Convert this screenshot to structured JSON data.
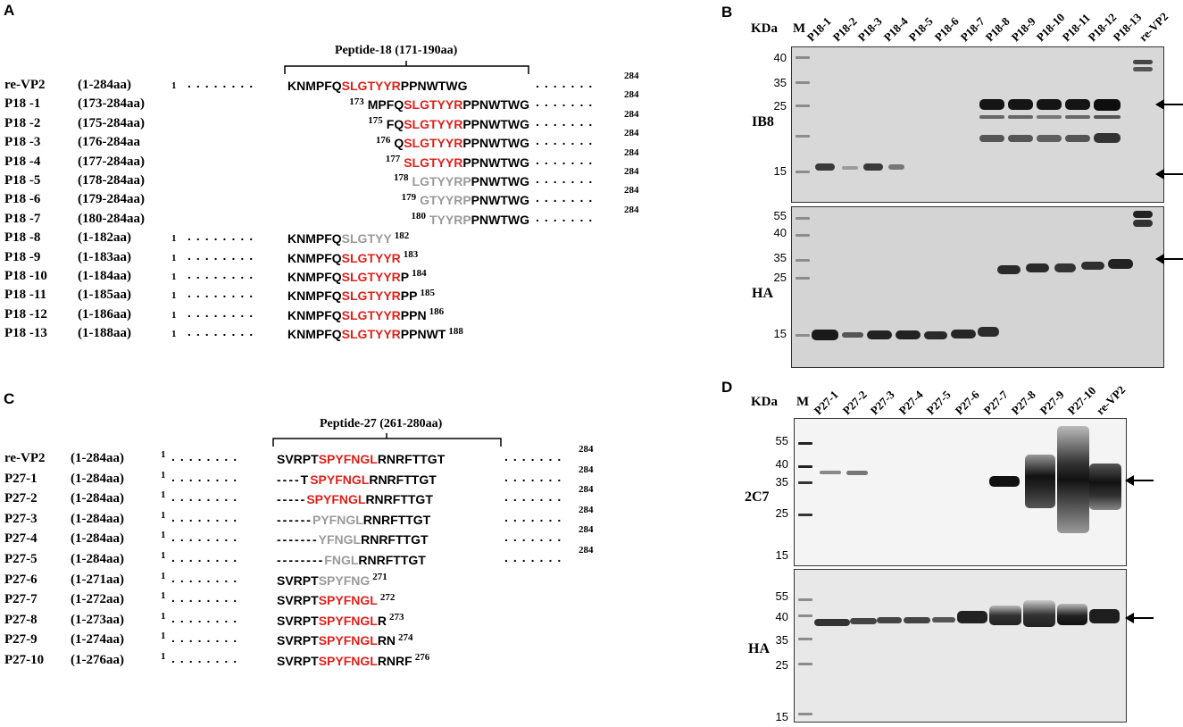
{
  "panels": {
    "A": {
      "letter": "A",
      "peptide_title": "Peptide-18 (171-190aa)",
      "rows": [
        {
          "name": "re-VP2",
          "range": "(1-284aa)",
          "start": "1",
          "parts": [
            {
              "t": "KNMPFQ",
              "c": "b"
            },
            {
              "t": "SLGTYYR",
              "c": "r"
            },
            {
              "t": "PPNWTWG",
              "c": "b"
            }
          ],
          "end": "284",
          "dots_left": true,
          "dots_right": true
        },
        {
          "name": "P18 -1",
          "range": "(173-284aa)",
          "start": "173",
          "parts": [
            {
              "t": "MPFQ",
              "c": "b"
            },
            {
              "t": "SLGTYYR",
              "c": "r"
            },
            {
              "t": "PPNWTWG",
              "c": "b"
            }
          ],
          "end": "284",
          "dots_left": false,
          "dots_right": true
        },
        {
          "name": "P18 -2",
          "range": "(175-284aa)",
          "start": "175",
          "parts": [
            {
              "t": "FQ",
              "c": "b"
            },
            {
              "t": "SLGTYYR",
              "c": "r"
            },
            {
              "t": "PPNWTWG",
              "c": "b"
            }
          ],
          "end": "284",
          "dots_left": false,
          "dots_right": true
        },
        {
          "name": "P18 -3",
          "range": "(176-284aa",
          "start": "176",
          "parts": [
            {
              "t": "Q",
              "c": "b"
            },
            {
              "t": "SLGTYYR",
              "c": "r"
            },
            {
              "t": "PPNWTWG",
              "c": "b"
            }
          ],
          "end": "284",
          "dots_left": false,
          "dots_right": true
        },
        {
          "name": "P18 -4",
          "range": "(177-284aa)",
          "start": "177",
          "parts": [
            {
              "t": "SLGTYYR",
              "c": "r"
            },
            {
              "t": "PPNWTWG",
              "c": "b"
            }
          ],
          "end": "284",
          "dots_left": false,
          "dots_right": true
        },
        {
          "name": "P18 -5",
          "range": "(178-284aa)",
          "start": "178",
          "parts": [
            {
              "t": "LGTYYRP",
              "c": "g"
            },
            {
              "t": "PNWTWG",
              "c": "b"
            }
          ],
          "end": "284",
          "dots_left": false,
          "dots_right": true
        },
        {
          "name": "P18 -6",
          "range": "(179-284aa)",
          "start": "179",
          "parts": [
            {
              "t": "GTYYRP",
              "c": "g"
            },
            {
              "t": "PNWTWG",
              "c": "b"
            }
          ],
          "end": "284",
          "dots_left": false,
          "dots_right": true
        },
        {
          "name": "P18 -7",
          "range": "(180-284aa)",
          "start": "180",
          "parts": [
            {
              "t": "TYYRP",
              "c": "g"
            },
            {
              "t": "PNWTWG",
              "c": "b"
            }
          ],
          "end": "284",
          "dots_left": false,
          "dots_right": true
        },
        {
          "name": "P18 -8",
          "range": "(1-182aa)",
          "start": "1",
          "parts": [
            {
              "t": "KNMPFQ",
              "c": "b"
            },
            {
              "t": "SLGTYY",
              "c": "g"
            }
          ],
          "end": "182",
          "dots_left": true,
          "dots_right": false
        },
        {
          "name": "P18 -9",
          "range": "(1-183aa)",
          "start": "1",
          "parts": [
            {
              "t": "KNMPFQ",
              "c": "b"
            },
            {
              "t": "SLGTYYR",
              "c": "r"
            }
          ],
          "end": "183",
          "dots_left": true,
          "dots_right": false
        },
        {
          "name": "P18 -10",
          "range": "(1-184aa)",
          "start": "1",
          "parts": [
            {
              "t": "KNMPFQ",
              "c": "b"
            },
            {
              "t": "SLGTYYR",
              "c": "r"
            },
            {
              "t": "P",
              "c": "b"
            }
          ],
          "end": "184",
          "dots_left": true,
          "dots_right": false
        },
        {
          "name": "P18 -11",
          "range": "(1-185aa)",
          "start": "1",
          "parts": [
            {
              "t": "KNMPFQ",
              "c": "b"
            },
            {
              "t": "SLGTYYR",
              "c": "r"
            },
            {
              "t": "PP",
              "c": "b"
            }
          ],
          "end": "185",
          "dots_left": true,
          "dots_right": false
        },
        {
          "name": "P18 -12",
          "range": "(1-186aa)",
          "start": "1",
          "parts": [
            {
              "t": "KNMPFQ",
              "c": "b"
            },
            {
              "t": "SLGTYYR",
              "c": "r"
            },
            {
              "t": "PPN",
              "c": "b"
            }
          ],
          "end": "186",
          "dots_left": true,
          "dots_right": false
        },
        {
          "name": "P18 -13",
          "range": "(1-188aa)",
          "start": "1",
          "parts": [
            {
              "t": "KNMPFQ",
              "c": "b"
            },
            {
              "t": "SLGTYYR",
              "c": "r"
            },
            {
              "t": "PPNWT",
              "c": "b"
            }
          ],
          "end": "188",
          "dots_left": true,
          "dots_right": false
        }
      ]
    },
    "C": {
      "letter": "C",
      "peptide_title": "Peptide-27 (261-280aa)",
      "rows": [
        {
          "name": "re-VP2",
          "range": "(1-284aa)",
          "start": "1",
          "parts": [
            {
              "t": "SVRPT",
              "c": "b"
            },
            {
              "t": "SPYFNGL",
              "c": "r"
            },
            {
              "t": "RNRFTTGT",
              "c": "b"
            }
          ],
          "end": "284",
          "dots_right": true
        },
        {
          "name": "P27-1",
          "range": "(1-284aa)",
          "start": "1",
          "parts": [
            {
              "t": "----T",
              "c": "b"
            },
            {
              "t": "SPYFNGL",
              "c": "r"
            },
            {
              "t": "RNRFTTGT",
              "c": "b"
            }
          ],
          "end": "284",
          "dots_right": true
        },
        {
          "name": "P27-2",
          "range": "(1-284aa)",
          "start": "1",
          "parts": [
            {
              "t": "-----",
              "c": "b"
            },
            {
              "t": "SPYFNGL",
              "c": "r"
            },
            {
              "t": "RNRFTTGT",
              "c": "b"
            }
          ],
          "end": "284",
          "dots_right": true
        },
        {
          "name": "P27-3",
          "range": "(1-284aa)",
          "start": "1",
          "parts": [
            {
              "t": "------",
              "c": "b"
            },
            {
              "t": "PYFNGL",
              "c": "g"
            },
            {
              "t": "RNRFTTGT",
              "c": "b"
            }
          ],
          "end": "284",
          "dots_right": true
        },
        {
          "name": "P27-4",
          "range": "(1-284aa)",
          "start": "1",
          "parts": [
            {
              "t": "-------",
              "c": "b"
            },
            {
              "t": "YFNGL",
              "c": "g"
            },
            {
              "t": "RNRFTTGT",
              "c": "b"
            }
          ],
          "end": "284",
          "dots_right": true
        },
        {
          "name": "P27-5",
          "range": "(1-284aa)",
          "start": "1",
          "parts": [
            {
              "t": "--------",
              "c": "b"
            },
            {
              "t": "FNGL",
              "c": "g"
            },
            {
              "t": "RNRFTTGT",
              "c": "b"
            }
          ],
          "end": "284",
          "dots_right": true
        },
        {
          "name": "P27-6",
          "range": "(1-271aa)",
          "start": "1",
          "parts": [
            {
              "t": "SVRPT",
              "c": "b"
            },
            {
              "t": "SPYFNG",
              "c": "g"
            }
          ],
          "end": "271",
          "dots_right": false
        },
        {
          "name": "P27-7",
          "range": "(1-272aa)",
          "start": "1",
          "parts": [
            {
              "t": "SVRPT",
              "c": "b"
            },
            {
              "t": "SPYFNGL",
              "c": "r"
            }
          ],
          "end": "272",
          "dots_right": false
        },
        {
          "name": "P27-8",
          "range": "(1-273aa)",
          "start": "1",
          "parts": [
            {
              "t": "SVRPT",
              "c": "b"
            },
            {
              "t": "SPYFNGL",
              "c": "r"
            },
            {
              "t": "R",
              "c": "b"
            }
          ],
          "end": "273",
          "dots_right": false
        },
        {
          "name": "P27-9",
          "range": "(1-274aa)",
          "start": "1",
          "parts": [
            {
              "t": "SVRPT",
              "c": "b"
            },
            {
              "t": "SPYFNGL",
              "c": "r"
            },
            {
              "t": "RN",
              "c": "b"
            }
          ],
          "end": "274",
          "dots_right": false
        },
        {
          "name": "P27-10",
          "range": "(1-276aa)",
          "start": "1",
          "parts": [
            {
              "t": "SVRPT",
              "c": "b"
            },
            {
              "t": "SPYFNGL",
              "c": "r"
            },
            {
              "t": "RNRF",
              "c": "b"
            }
          ],
          "end": "276",
          "dots_right": false
        }
      ]
    },
    "B": {
      "letter": "B",
      "kda_label": "KDa",
      "marker_label": "M",
      "lanes": [
        "P18-1",
        "P18-2",
        "P18-3",
        "P18-4",
        "P18-5",
        "P18-6",
        "P18-7",
        "P18-8",
        "P18-9",
        "P18-10",
        "P18-11",
        "P18-12",
        "P18-13",
        "re-VP2"
      ],
      "blots": [
        {
          "name": "IB8",
          "kda": [
            "40",
            "35",
            "25",
            "15"
          ]
        },
        {
          "name": "HA",
          "kda": [
            "55",
            "40",
            "35",
            "25",
            "15"
          ]
        }
      ]
    },
    "D": {
      "letter": "D",
      "kda_label": "KDa",
      "marker_label": "M",
      "lanes": [
        "P27-1",
        "P27-2",
        "P27-3",
        "P27-4",
        "P27-5",
        "P27-6",
        "P27-7",
        "P27-8",
        "P27-9",
        "P27-10",
        "re-VP2"
      ],
      "blots": [
        {
          "name": "2C7",
          "kda": [
            "55",
            "40",
            "35",
            "25",
            "15"
          ]
        },
        {
          "name": "HA",
          "kda": [
            "55",
            "40",
            "35",
            "25",
            "15"
          ]
        }
      ]
    }
  },
  "colors": {
    "epitope": "#e0211b",
    "truncated": "#9a9a9a"
  }
}
